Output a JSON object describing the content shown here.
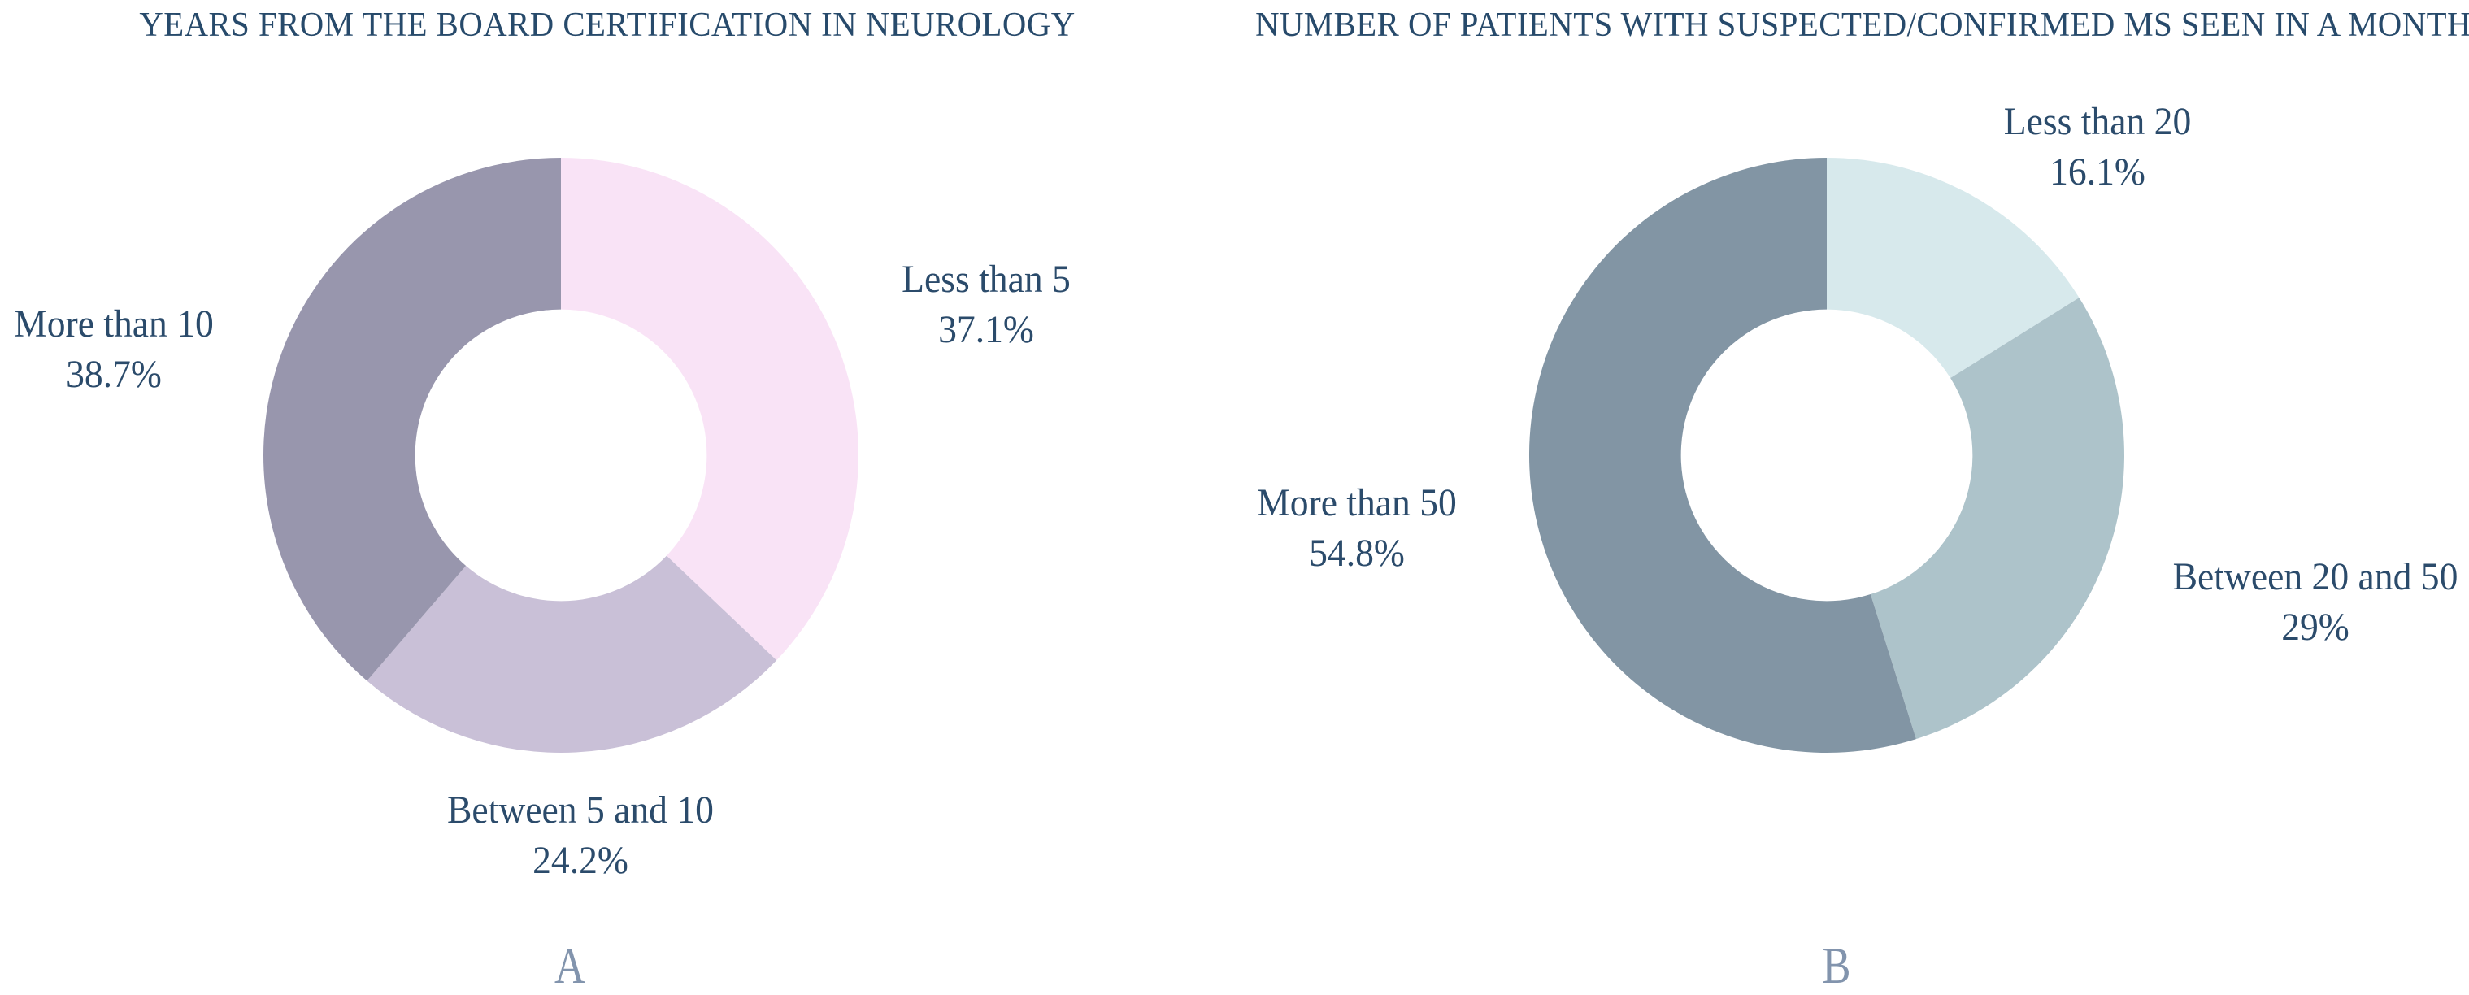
{
  "page": {
    "background_color": "#ffffff",
    "title_text_color": "#274a6b",
    "label_text_color": "#2b4b6b",
    "panel_letter_color": "#8294ad"
  },
  "chart_data": [
    {
      "type": "pie",
      "subtype": "donut",
      "title": "YEARS FROM THE BOARD CERTIFICATION IN NEUROLOGY",
      "panel_letter": "A",
      "direction": "clockwise",
      "start_angle_deg": 0,
      "inner_radius_ratio": 0.49,
      "legend": "none",
      "label_style": "outside",
      "unit": "%",
      "categories": [
        "Less than 5",
        "Between 5 and 10",
        "More than 10"
      ],
      "values": [
        37.1,
        24.2,
        38.7
      ],
      "colors": [
        "#f9e3f6",
        "#c9c0d7",
        "#9896ad"
      ],
      "labels": [
        {
          "name": "Less than 5",
          "pct": "37.1%"
        },
        {
          "name": "Between 5 and 10",
          "pct": "24.2%"
        },
        {
          "name": "More than 10",
          "pct": "38.7%"
        }
      ]
    },
    {
      "type": "pie",
      "subtype": "donut",
      "title": "NUMBER OF PATIENTS WITH SUSPECTED/CONFIRMED MS SEEN IN A MONTH",
      "panel_letter": "B",
      "direction": "clockwise",
      "start_angle_deg": 0,
      "inner_radius_ratio": 0.49,
      "legend": "none",
      "label_style": "outside",
      "unit": "%",
      "categories": [
        "Less than 20",
        "Between 20 and 50",
        "More than 50"
      ],
      "values": [
        16.1,
        29,
        54.8
      ],
      "colors": [
        "#d7e9ec",
        "#adc3ca",
        "#8295a4"
      ],
      "labels": [
        {
          "name": "Less than 20",
          "pct": "16.1%"
        },
        {
          "name": "Between 20 and 50",
          "pct": "29%"
        },
        {
          "name": "More than 50",
          "pct": "54.8%"
        }
      ]
    }
  ]
}
